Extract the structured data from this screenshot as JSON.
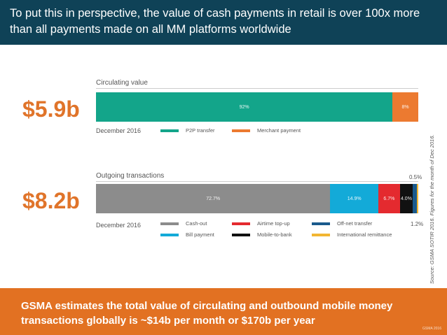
{
  "header": {
    "title": "To put this in perspective, the value of cash payments in retail is over 100x more than all payments made on all MM platforms worldwide"
  },
  "footer": {
    "text": "GSMA estimates the total value of circulating and outbound mobile money transactions globally is ~$14b per month or $170b per year",
    "mark": "GSMA 2016"
  },
  "source": "Source: GSMA SOTIR 2016. Figures for the month of Dec 2016.",
  "chart_data": [
    {
      "type": "bar",
      "orientation": "horizontal-stacked",
      "title": "Circulating value",
      "amount": "$5.9b",
      "date": "December 2016",
      "unit": "%",
      "series": [
        {
          "name": "P2P transfer",
          "value": 92,
          "label": "92%",
          "color": "#13a58a"
        },
        {
          "name": "Merchant payment",
          "value": 8,
          "label": "8%",
          "color": "#ec7a30"
        }
      ]
    },
    {
      "type": "bar",
      "orientation": "horizontal-stacked",
      "title": "Outgoing transactions",
      "amount": "$8.2b",
      "date": "December 2016",
      "unit": "%",
      "series": [
        {
          "name": "Cash-out",
          "value": 72.7,
          "label": "72.7%",
          "color": "#8c8c8c"
        },
        {
          "name": "Bill payment",
          "value": 14.9,
          "label": "14.9%",
          "color": "#13aad8"
        },
        {
          "name": "Airtime top-up",
          "value": 6.7,
          "label": "6.7%",
          "color": "#e42a2f"
        },
        {
          "name": "Mobile-to-bank",
          "value": 4.0,
          "label": "4.0%",
          "color": "#111111"
        },
        {
          "name": "Off-net transfer",
          "value": 1.2,
          "label": "1.2%",
          "color": "#1a5a8c"
        },
        {
          "name": "International remittance",
          "value": 0.5,
          "label": "0.5%",
          "color": "#f2b632"
        }
      ]
    }
  ]
}
